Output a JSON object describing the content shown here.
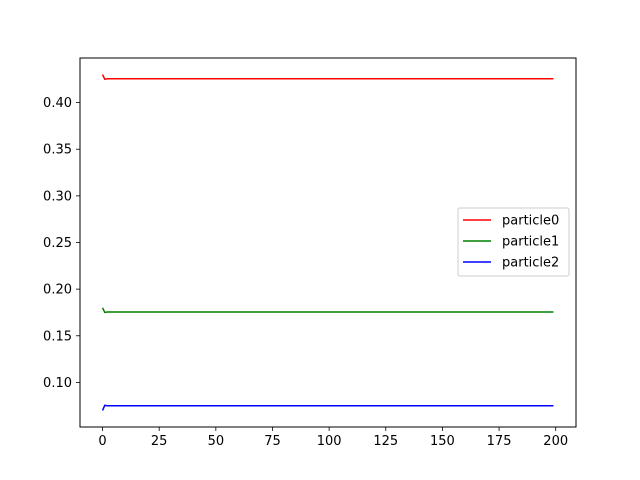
{
  "chart_data": {
    "type": "line",
    "title": "",
    "xlabel": "",
    "ylabel": "",
    "xlim": [
      -9.95,
      208.95
    ],
    "ylim": [
      0.0522,
      0.4478
    ],
    "xticks": [
      0,
      25,
      50,
      75,
      100,
      125,
      150,
      175,
      200
    ],
    "yticks": [
      0.1,
      0.15,
      0.2,
      0.25,
      0.3,
      0.35,
      0.4
    ],
    "xtick_labels": [
      "0",
      "25",
      "50",
      "75",
      "100",
      "125",
      "150",
      "175",
      "200"
    ],
    "ytick_labels": [
      "0.10",
      "0.15",
      "0.20",
      "0.25",
      "0.30",
      "0.35",
      "0.40"
    ],
    "grid": false,
    "legend_position": "center-right",
    "series": [
      {
        "name": "particle0",
        "color": "#ff0000",
        "x": [
          0,
          1,
          2,
          199
        ],
        "values": [
          0.43,
          0.425,
          0.4255,
          0.4255
        ]
      },
      {
        "name": "particle1",
        "color": "#008000",
        "x": [
          0,
          1,
          2,
          199
        ],
        "values": [
          0.18,
          0.175,
          0.1755,
          0.1755
        ]
      },
      {
        "name": "particle2",
        "color": "#0000ff",
        "x": [
          0,
          1,
          2,
          199
        ],
        "values": [
          0.07,
          0.0755,
          0.075,
          0.075
        ]
      }
    ]
  }
}
